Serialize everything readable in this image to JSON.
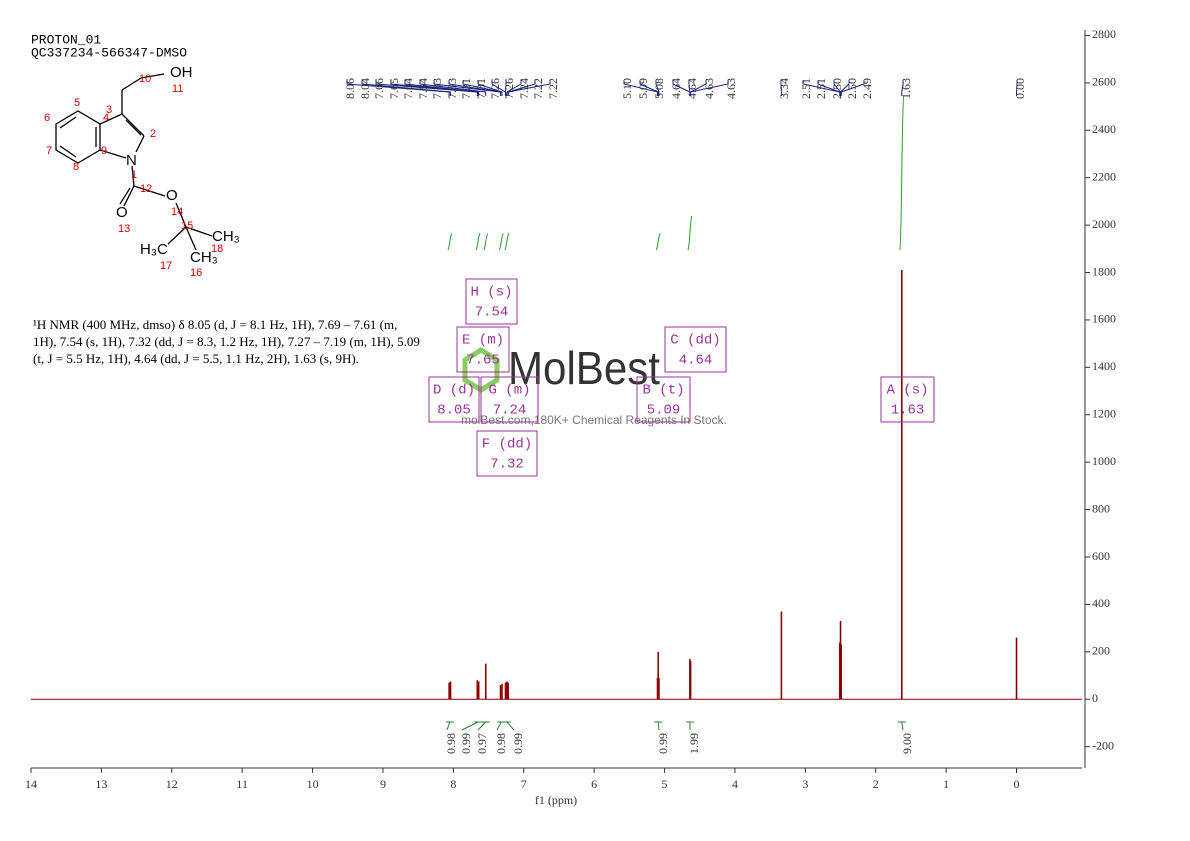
{
  "chart_data": {
    "type": "nmr",
    "title": "PROTON_01",
    "subtitle": "QC337234-566347-DMSO",
    "xlabel": "f1 (ppm)",
    "xlim": [
      14,
      -0.93
    ],
    "xticks": [
      14,
      13,
      12,
      11,
      10,
      9,
      8,
      7,
      6,
      5,
      4,
      3,
      2,
      1,
      0
    ],
    "ylim": [
      -290,
      2823
    ],
    "yticks": [
      -200,
      0,
      200,
      400,
      600,
      800,
      1000,
      1200,
      1400,
      1600,
      1800,
      2000,
      2200,
      2400,
      2600,
      2800
    ],
    "color": "#8b0000",
    "peaks": {
      "x": [
        8.06,
        8.04,
        7.66,
        7.64,
        7.54,
        7.33,
        7.31,
        7.26,
        7.24,
        7.22,
        5.1,
        5.09,
        5.08,
        4.64,
        4.63,
        3.34,
        2.51,
        2.5,
        2.49,
        1.63,
        0.0
      ],
      "values": [
        70,
        75,
        80,
        75,
        150,
        60,
        65,
        70,
        75,
        70,
        90,
        200,
        90,
        170,
        160,
        370,
        240,
        330,
        230,
        1810,
        260
      ]
    },
    "peak_labels": [
      "8.06",
      "8.04",
      "7.66",
      "7.65",
      "7.64",
      "7.54",
      "7.33",
      "7.33",
      "7.31",
      "7.31",
      "7.26",
      "7.26",
      "7.24",
      "7.22",
      "7.22",
      "5.10",
      "5.09",
      "5.08",
      "4.64",
      "4.64",
      "4.63",
      "4.63",
      "3.34",
      "2.51",
      "2.51",
      "2.50",
      "2.50",
      "2.49",
      "1.63",
      "0.00"
    ],
    "integrals": {
      "x": [
        8.05,
        7.65,
        7.54,
        7.32,
        7.24,
        5.09,
        4.64,
        1.63
      ],
      "values": [
        0.98,
        0.99,
        0.97,
        0.98,
        0.99,
        0.99,
        1.99,
        9.0
      ],
      "value_labels": [
        "0.98",
        "0.99",
        "0.97",
        "0.98",
        "0.99",
        "0.99",
        "1.99",
        "9.00"
      ]
    },
    "multiplets": [
      {
        "name": "H (s)",
        "shift": "7.54"
      },
      {
        "name": "E (m)",
        "shift": "7.65"
      },
      {
        "name": "C (dd)",
        "shift": "4.64"
      },
      {
        "name": "D (d)",
        "shift": "8.05"
      },
      {
        "name": "G (m)",
        "shift": "7.24"
      },
      {
        "name": "B (t)",
        "shift": "5.09"
      },
      {
        "name": "A (s)",
        "shift": "1.63"
      },
      {
        "name": "F (dd)",
        "shift": "7.32"
      }
    ],
    "description": "¹H NMR (400 MHz, dmso) δ 8.05 (d, J = 8.1 Hz, 1H), 7.69 – 7.61 (m, 1H), 7.54 (s, 1H), 7.32 (dd, J = 8.3, 1.2 Hz, 1H), 7.27 – 7.19 (m, 1H), 5.09 (t, J = 5.5 Hz, 1H), 4.64 (dd, J = 5.5, 1.1 Hz, 2H), 1.63 (s, 9H).",
    "watermark": {
      "logo": "MolBest",
      "text": "molBest.com,180K+ Chemical Reagents In Stock."
    },
    "structure": {
      "atoms": [
        "OH",
        "N",
        "O",
        "O",
        "H₃C",
        "CH₃",
        "CH₃"
      ],
      "numbers": [
        "10",
        "11",
        "5",
        "3",
        "6",
        "4",
        "2",
        "7",
        "9",
        "8",
        "1",
        "12",
        "14",
        "13",
        "15",
        "18",
        "17",
        "16"
      ]
    }
  }
}
